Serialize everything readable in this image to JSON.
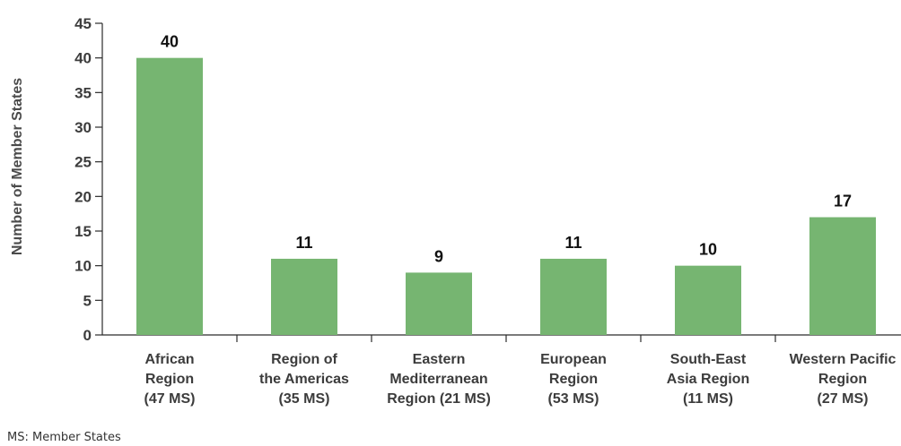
{
  "chart_data": {
    "type": "bar",
    "categories": [
      [
        "African",
        "Region",
        "(47 MS)"
      ],
      [
        "Region of",
        "the Americas",
        "(35 MS)"
      ],
      [
        "Eastern",
        "Mediterranean",
        "Region (21 MS)"
      ],
      [
        "European",
        "Region",
        "(53 MS)"
      ],
      [
        "South-East",
        "Asia Region",
        "(11 MS)"
      ],
      [
        "Western Pacific",
        "Region",
        "(27 MS)"
      ]
    ],
    "values": [
      40,
      11,
      9,
      11,
      10,
      17
    ],
    "data_labels": [
      "40",
      "11",
      "9",
      "11",
      "10",
      "17"
    ],
    "title": "",
    "xlabel": "",
    "ylabel": "Number of Member States",
    "ylim": [
      0,
      45
    ],
    "yticks": [
      "0",
      "5",
      "10",
      "15",
      "20",
      "25",
      "30",
      "35",
      "40",
      "45"
    ],
    "grid": false,
    "legend": "none",
    "bar_color": "#76b571"
  },
  "footnote": "MS: Member States"
}
